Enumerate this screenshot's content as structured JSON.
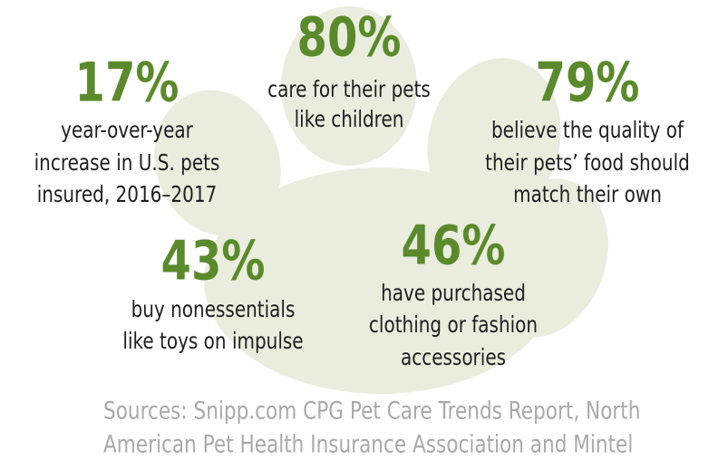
{
  "stats": [
    {
      "value": "80%",
      "lines": [
        "care for their pets",
        "like children"
      ]
    },
    {
      "value": "17%",
      "lines": [
        "year-over-year",
        "increase in U.S. pets",
        "insured, 2016–2017"
      ]
    },
    {
      "value": "79%",
      "lines": [
        "believe the quality of",
        "their pets’ food should",
        "match their own"
      ]
    },
    {
      "value": "43%",
      "lines": [
        "buy nonessentials",
        "like toys on impulse"
      ]
    },
    {
      "value": "46%",
      "lines": [
        "have purchased",
        "clothing or fashion",
        "accessories"
      ]
    }
  ],
  "sources": [
    "Sources: Snipp.com CPG Pet Care Trends Report, North",
    "American Pet Health Insurance Association and Mintel"
  ]
}
